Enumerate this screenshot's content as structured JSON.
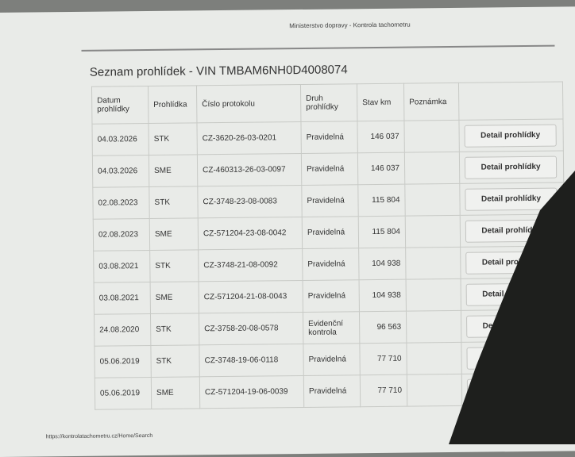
{
  "header": {
    "title": "Ministerstvo dopravy - Kontrola tachometru"
  },
  "page_title": "Seznam prohlídek - VIN TMBAM6NH0D4008074",
  "table": {
    "columns": [
      "Datum prohlídky",
      "Prohlídka",
      "Číslo protokolu",
      "Druh prohlídky",
      "Stav km",
      "Poznámka"
    ],
    "button": "Detail prohlídky",
    "rows": [
      [
        "04.03.2026",
        "STK",
        "CZ-3620-26-03-0201",
        "Pravidelná",
        "146 037"
      ],
      [
        "04.03.2026",
        "SME",
        "CZ-460313-26-03-0097",
        "Pravidelná",
        "146 037"
      ],
      [
        "02.08.2023",
        "STK",
        "CZ-3748-23-08-0083",
        "Pravidelná",
        "115 804"
      ],
      [
        "02.08.2023",
        "SME",
        "CZ-571204-23-08-0042",
        "Pravidelná",
        "115 804"
      ],
      [
        "03.08.2021",
        "STK",
        "CZ-3748-21-08-0092",
        "Pravidelná",
        "104 938"
      ],
      [
        "03.08.2021",
        "SME",
        "CZ-571204-21-08-0043",
        "Pravidelná",
        "104 938"
      ],
      [
        "24.08.2020",
        "STK",
        "CZ-3758-20-08-0578",
        "Evidenční kontrola",
        "96 563"
      ],
      [
        "05.06.2019",
        "STK",
        "CZ-3748-19-06-0118",
        "Pravidelná",
        "77 710"
      ],
      [
        "05.06.2019",
        "SME",
        "CZ-571204-19-06-0039",
        "Pravidelná",
        "77 710"
      ]
    ]
  },
  "footer": {
    "url": "https://kontrolatachometru.cz/Home/Search"
  }
}
